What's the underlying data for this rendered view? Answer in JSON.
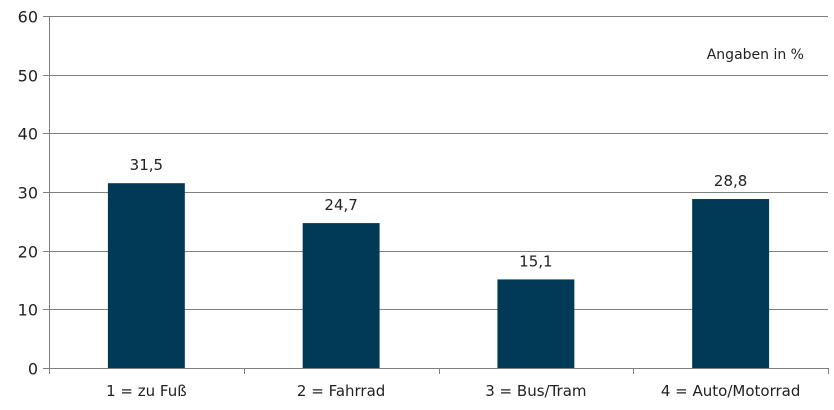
{
  "chart_data": {
    "type": "bar",
    "title": "",
    "xlabel": "",
    "ylabel": "",
    "annotation": "Angaben in %",
    "categories": [
      "1 = zu Fuß",
      "2 = Fahrrad",
      "3 = Bus/Tram",
      "4 = Auto/Motorrad"
    ],
    "values": [
      31.5,
      24.7,
      15.1,
      28.8
    ],
    "value_labels": [
      "31,5",
      "24,7",
      "15,1",
      "28,8"
    ],
    "ylim": [
      0,
      60
    ],
    "yticks": [
      0,
      10,
      20,
      30,
      40,
      50,
      60
    ],
    "ytick_labels": [
      "0",
      "10",
      "20",
      "30",
      "40",
      "50",
      "60"
    ],
    "grid": true,
    "legend": "none",
    "colors": {
      "bar": "#003a56",
      "grid": "#808080",
      "axis": "#808080"
    }
  }
}
